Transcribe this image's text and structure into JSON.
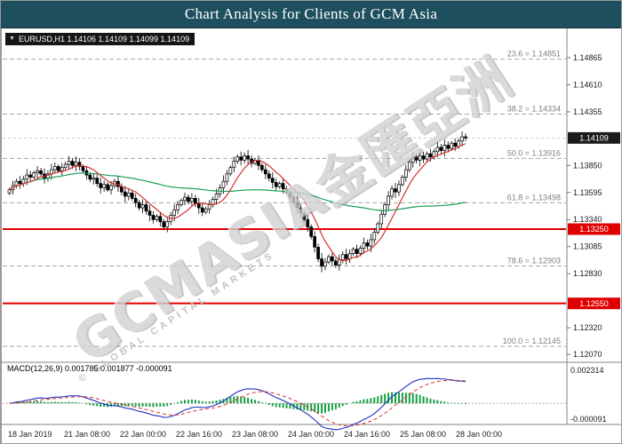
{
  "title": "Chart Analysis for Clients of GCM Asia",
  "quote": {
    "line": "EURUSD,H1 1.14106 1.14109 1.14099 1.14109",
    "symbol": "EURUSD",
    "timeframe": "H1",
    "open": "1.14106",
    "high": "1.14109",
    "low": "1.14099",
    "close": "1.14109"
  },
  "watermark": {
    "text": "GCMASIA金匯亞洲",
    "subtext": "© GLOBAL CAPITAL MARKETS"
  },
  "indicator_panel": {
    "label": "MACD(12,26,9) 0.001785 0.001877 -0.000091"
  },
  "colors": {
    "titlebar": "#1d4f5f",
    "red_line": "#e00000",
    "ma_fast": "#d83030",
    "ma_slow": "#18a05a",
    "macd_line": "#2030c0",
    "macd_signal": "#d83030",
    "macd_hist": "#18a045",
    "badge_dark": "#1b1b1b",
    "fib": "#808080"
  },
  "chart_data": {
    "type": "candlestick",
    "symbol": "EURUSD",
    "timeframe": "H1",
    "ylim": [
      1.1202,
      1.1503
    ],
    "closes": [
      1.1362,
      1.1366,
      1.137,
      1.1368,
      1.1372,
      1.1376,
      1.1374,
      1.1378,
      1.138,
      1.1377,
      1.1373,
      1.1377,
      1.1381,
      1.1384,
      1.138,
      1.1383,
      1.1386,
      1.1389,
      1.1385,
      1.1388,
      1.1384,
      1.138,
      1.1376,
      1.1372,
      1.1373,
      1.1368,
      1.1364,
      1.1367,
      1.1362,
      1.1366,
      1.137,
      1.1365,
      1.136,
      1.1356,
      1.1359,
      1.1354,
      1.135,
      1.1345,
      1.1348,
      1.1342,
      1.1338,
      1.1334,
      1.1337,
      1.1332,
      1.1327,
      1.1332,
      1.1338,
      1.1343,
      1.1348,
      1.1352,
      1.1355,
      1.1351,
      1.1354,
      1.1349,
      1.1345,
      1.1341,
      1.1344,
      1.1348,
      1.1353,
      1.1358,
      1.1364,
      1.137,
      1.1377,
      1.1383,
      1.1389,
      1.1393,
      1.139,
      1.1394,
      1.1391,
      1.1387,
      1.139,
      1.1385,
      1.1381,
      1.1377,
      1.1373,
      1.1369,
      1.1365,
      1.1368,
      1.1363,
      1.1359,
      1.1355,
      1.135,
      1.1345,
      1.134,
      1.1334,
      1.1327,
      1.1318,
      1.1308,
      1.1297,
      1.129,
      1.1294,
      1.1299,
      1.1295,
      1.1291,
      1.1296,
      1.1301,
      1.1297,
      1.1302,
      1.1306,
      1.1302,
      1.1307,
      1.1312,
      1.1309,
      1.1315,
      1.1322,
      1.133,
      1.1339,
      1.1348,
      1.1356,
      1.1363,
      1.136,
      1.1367,
      1.1374,
      1.1381,
      1.1388,
      1.1393,
      1.139,
      1.1394,
      1.1391,
      1.1396,
      1.1393,
      1.1398,
      1.1402,
      1.1399,
      1.1404,
      1.1401,
      1.1406,
      1.1403,
      1.1408,
      1.1412,
      1.14109
    ],
    "y_ticks": [
      "1.14865",
      "1.14610",
      "1.14355",
      "1.13850",
      "1.13595",
      "1.13340",
      "1.13085",
      "1.12830",
      "1.12320",
      "1.12070"
    ],
    "x_labels": [
      "18 Jan 2019",
      "21 Jan 08:00",
      "22 Jan 00:00",
      "22 Jan 16:00",
      "23 Jan 08:00",
      "24 Jan 00:00",
      "24 Jan 16:00",
      "25 Jan 08:00",
      "28 Jan 00:00"
    ],
    "fib_levels": [
      {
        "label": "23.6",
        "value": 1.14851,
        "text": "23.6 = 1.14851"
      },
      {
        "label": "38.2",
        "value": 1.14334,
        "text": "38.2 = 1.14334"
      },
      {
        "label": "50.0",
        "value": 1.13916,
        "text": "50.0 = 1.13916"
      },
      {
        "label": "61.8",
        "value": 1.13498,
        "text": "61.8 = 1.13498"
      },
      {
        "label": "78.6",
        "value": 1.12903,
        "text": "78.6 = 1.12903"
      },
      {
        "label": "100.0",
        "value": 1.12145,
        "text": "100.0 = 1.12145"
      }
    ],
    "horizontal_lines": [
      {
        "label": "1.13250",
        "value": 1.1325
      },
      {
        "label": "1.12550",
        "value": 1.1255
      }
    ],
    "current_price": {
      "label": "1.14109",
      "value": 1.14109
    },
    "macd": {
      "fast": 12,
      "slow": 26,
      "signal": 9,
      "values": [
        "0.001785",
        "0.001877",
        "-0.000091"
      ],
      "axis_max": "0.002314",
      "axis_min": "-0.000091"
    }
  }
}
